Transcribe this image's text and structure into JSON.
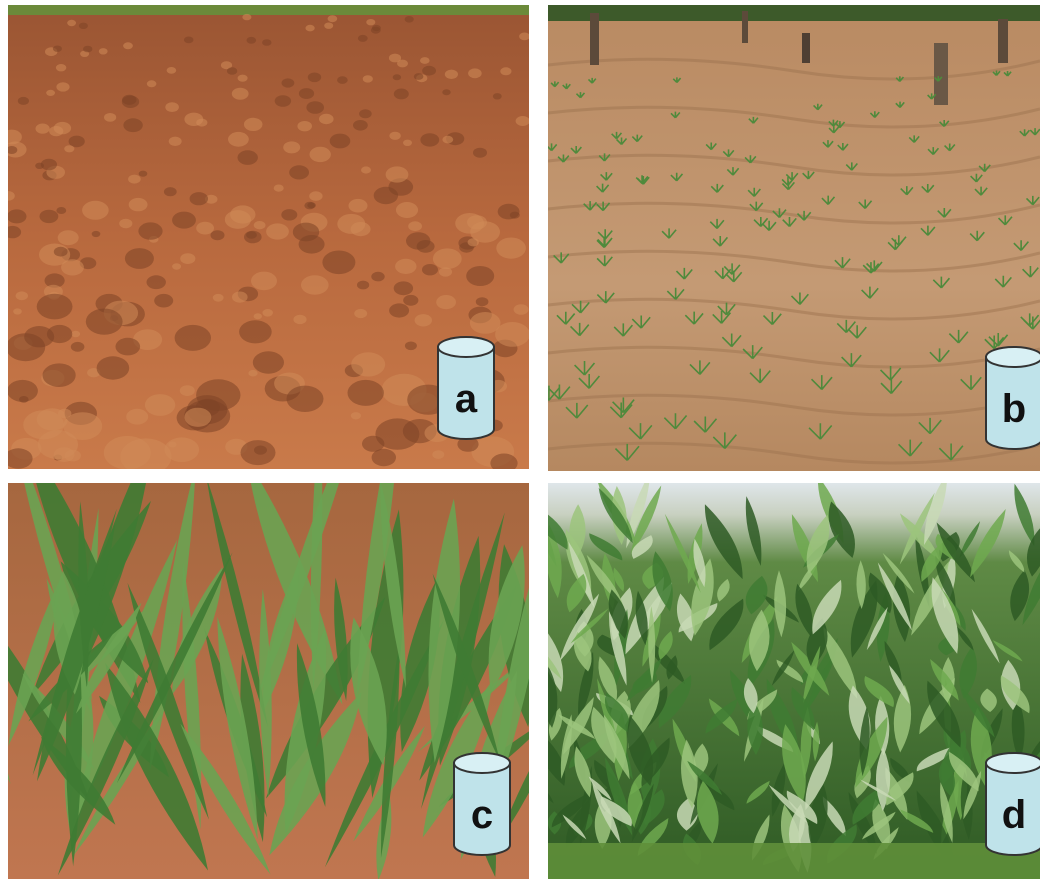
{
  "panels": [
    {
      "label": "a",
      "scene": "tilled-soil"
    },
    {
      "label": "b",
      "scene": "seedlings"
    },
    {
      "label": "c",
      "scene": "young-sorghum"
    },
    {
      "label": "d",
      "scene": "mature-maize"
    }
  ],
  "colors": {
    "soil": "#b7683b",
    "soil_dry": "#c29470",
    "leaf": "#4f8a3c",
    "leaf_dark": "#2e5a24",
    "label_can": "#bfe3ea"
  }
}
